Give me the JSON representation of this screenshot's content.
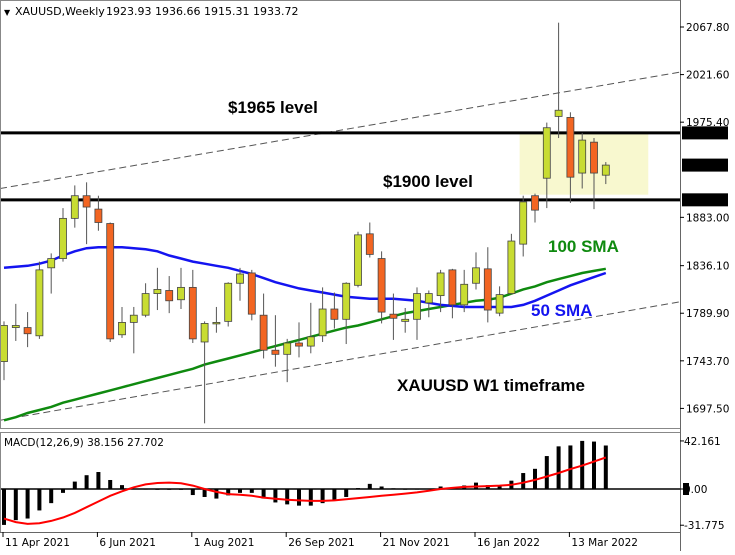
{
  "header": {
    "symbol_timeframe": "XAUUSD,Weekly",
    "ohlc": "1923.93 1936.66 1915.31 1933.72"
  },
  "macd_header": "MACD(12,26,9) 38.156 27.702",
  "colors": {
    "bull": "#c8dc32",
    "bear": "#f26522",
    "sma50": "#1414f0",
    "sma100": "#0f8a0f",
    "signal": "#ff0000",
    "zone": "#f8f8cf"
  },
  "chart_data": [
    {
      "type": "candlestick",
      "title": "XAUUSD,Weekly",
      "ylim": [
        1680,
        2085
      ],
      "grid": false,
      "price_ticks": [
        "2067.80",
        "2021.60",
        "1975.40",
        "1883.00",
        "1836.10",
        "1789.90",
        "1743.70",
        "1697.50"
      ],
      "price_badges": [
        "1965.00",
        "1933.72",
        "1900.00"
      ],
      "date_ticks": [
        {
          "label": "11 Apr 2021",
          "index": 0
        },
        {
          "label": "6 Jun 2021",
          "index": 8
        },
        {
          "label": "1 Aug 2021",
          "index": 16
        },
        {
          "label": "26 Sep 2021",
          "index": 24
        },
        {
          "label": "21 Nov 2021",
          "index": 32
        },
        {
          "label": "16 Jan 2022",
          "index": 40
        },
        {
          "label": "13 Mar 2022",
          "index": 48
        }
      ],
      "candles": [
        [
          1743,
          1782,
          1725,
          1778
        ],
        [
          1776,
          1799,
          1763,
          1778
        ],
        [
          1776,
          1791,
          1757,
          1770
        ],
        [
          1768,
          1840,
          1765,
          1832
        ],
        [
          1834,
          1848,
          1809,
          1843
        ],
        [
          1843,
          1892,
          1840,
          1882
        ],
        [
          1882,
          1914,
          1873,
          1904
        ],
        [
          1904,
          1917,
          1857,
          1893
        ],
        [
          1891,
          1904,
          1870,
          1878
        ],
        [
          1877,
          1878,
          1762,
          1765
        ],
        [
          1769,
          1796,
          1766,
          1781
        ],
        [
          1781,
          1796,
          1751,
          1788
        ],
        [
          1788,
          1819,
          1786,
          1809
        ],
        [
          1809,
          1834,
          1793,
          1813
        ],
        [
          1812,
          1826,
          1790,
          1802
        ],
        [
          1803,
          1834,
          1794,
          1815
        ],
        [
          1815,
          1832,
          1761,
          1765
        ],
        [
          1762,
          1782,
          1683,
          1780
        ],
        [
          1780,
          1796,
          1771,
          1781
        ],
        [
          1782,
          1820,
          1777,
          1819
        ],
        [
          1819,
          1834,
          1802,
          1828
        ],
        [
          1829,
          1832,
          1783,
          1789
        ],
        [
          1788,
          1809,
          1746,
          1754
        ],
        [
          1754,
          1788,
          1738,
          1750
        ],
        [
          1750,
          1765,
          1723,
          1761
        ],
        [
          1761,
          1781,
          1747,
          1758
        ],
        [
          1758,
          1800,
          1751,
          1767
        ],
        [
          1768,
          1815,
          1762,
          1794
        ],
        [
          1794,
          1810,
          1775,
          1784
        ],
        [
          1784,
          1820,
          1760,
          1819
        ],
        [
          1817,
          1869,
          1815,
          1866
        ],
        [
          1867,
          1878,
          1844,
          1847
        ],
        [
          1843,
          1850,
          1780,
          1791
        ],
        [
          1789,
          1809,
          1764,
          1785
        ],
        [
          1782,
          1795,
          1771,
          1784
        ],
        [
          1784,
          1815,
          1764,
          1809
        ],
        [
          1800,
          1812,
          1786,
          1809
        ],
        [
          1807,
          1832,
          1791,
          1829
        ],
        [
          1832,
          1833,
          1785,
          1798
        ],
        [
          1798,
          1832,
          1791,
          1818
        ],
        [
          1819,
          1849,
          1813,
          1834
        ],
        [
          1833,
          1854,
          1781,
          1793
        ],
        [
          1790,
          1816,
          1787,
          1808
        ],
        [
          1809,
          1867,
          1808,
          1860
        ],
        [
          1857,
          1904,
          1845,
          1898
        ],
        [
          1904,
          1906,
          1878,
          1890
        ],
        [
          1921,
          1975,
          1892,
          1970
        ],
        [
          1981,
          2072,
          1960,
          1987
        ],
        [
          1980,
          1985,
          1897,
          1922
        ],
        [
          1926,
          1965,
          1911,
          1958
        ],
        [
          1956,
          1960,
          1891,
          1926
        ],
        [
          1923.93,
          1936.66,
          1915.31,
          1933.72
        ]
      ],
      "sma50": [
        1834,
        1835,
        1836,
        1838,
        1841,
        1846,
        1850,
        1853,
        1854,
        1854,
        1854,
        1853,
        1852,
        1850,
        1846,
        1843,
        1840,
        1838,
        1836,
        1834,
        1831,
        1828,
        1824,
        1820,
        1817,
        1814,
        1812,
        1810,
        1808,
        1806,
        1805,
        1804,
        1804,
        1804,
        1803,
        1802,
        1800,
        1798,
        1797,
        1796,
        1796,
        1796,
        1796,
        1796,
        1798,
        1802,
        1807,
        1812,
        1817,
        1821,
        1825,
        1829
      ],
      "sma100": [
        1686,
        1689,
        1693,
        1696,
        1699,
        1703,
        1706,
        1709,
        1712,
        1715,
        1718,
        1721,
        1724,
        1727,
        1730,
        1733,
        1736,
        1740,
        1743,
        1746,
        1749,
        1752,
        1755,
        1758,
        1761,
        1764,
        1767,
        1770,
        1773,
        1776,
        1778,
        1781,
        1784,
        1787,
        1790,
        1792,
        1794,
        1796,
        1798,
        1800,
        1802,
        1803,
        1805,
        1809,
        1813,
        1816,
        1820,
        1823,
        1826,
        1829,
        1831,
        1833
      ],
      "horizontal_levels": [
        1965,
        1900
      ],
      "zone": {
        "from_index": 43.7,
        "to_index": 54.6,
        "top": 1965,
        "bottom": 1905
      },
      "trendlines": [
        {
          "start_price": 1911,
          "end_price": 2024
        },
        {
          "start_price": 1686,
          "end_price": 1801
        }
      ],
      "annotations": [
        {
          "key": "level1965",
          "text": "$1965 level"
        },
        {
          "key": "level1900",
          "text": "$1900 level"
        },
        {
          "key": "sma100",
          "text": "100 SMA"
        },
        {
          "key": "sma50",
          "text": "50 SMA"
        },
        {
          "key": "timeframe",
          "text": "XAUUSD W1 timeframe"
        }
      ]
    },
    {
      "type": "bar",
      "title": "MACD(12,26,9) 38.156 27.702",
      "ylim": [
        -31.775,
        42.161
      ],
      "ticks": [
        "42.161",
        "0.00",
        "-31.775"
      ],
      "histogram": [
        -31.5,
        -27.3,
        -25.9,
        -18.8,
        -12.4,
        -3.4,
        6.5,
        12.1,
        14.9,
        7.9,
        3.4,
        0.3,
        0.2,
        -0.3,
        -0.5,
        -0.5,
        -5.3,
        -7.0,
        -8.4,
        -5.6,
        -3.4,
        -3.4,
        -8.4,
        -11.8,
        -13.5,
        -14.6,
        -14.6,
        -12.4,
        -9.6,
        -7.0,
        0.8,
        4.5,
        2.2,
        0.6,
        0.1,
        0.2,
        0.3,
        2.2,
        0.5,
        3.1,
        5.6,
        3.4,
        3.4,
        7.3,
        14.0,
        17.7,
        28.9,
        37.4,
        38.2,
        42.2,
        41.6,
        38.156
      ],
      "signal": [
        -26,
        -29,
        -30.6,
        -30,
        -28,
        -25,
        -21,
        -16,
        -11,
        -6,
        -2,
        1.5,
        4,
        5.3,
        5.6,
        5,
        3,
        0,
        -2.5,
        -4.5,
        -5,
        -6,
        -7.5,
        -8.5,
        -9.5,
        -10,
        -10.4,
        -10.4,
        -10,
        -9,
        -8,
        -7,
        -6,
        -5,
        -4,
        -3,
        -1.5,
        0,
        1,
        1.8,
        2.2,
        2.5,
        3,
        3.7,
        5.5,
        8,
        11,
        14,
        17.5,
        20.5,
        24,
        27.702
      ]
    }
  ]
}
